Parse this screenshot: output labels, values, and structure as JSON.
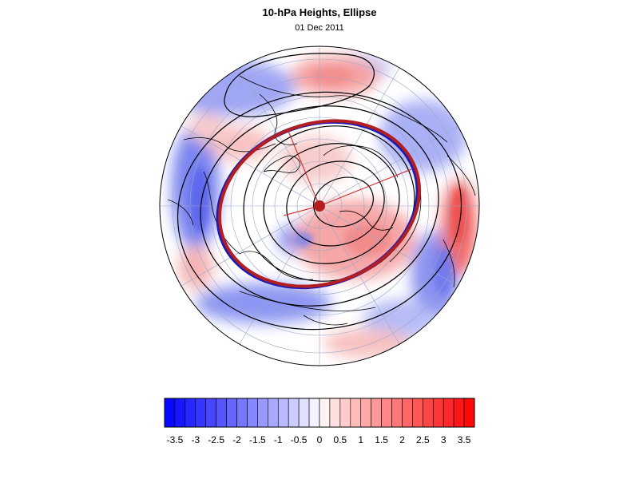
{
  "header": {
    "title": "10-hPa Heights, Ellipse",
    "date": "01 Dec 2011"
  },
  "map": {
    "projection": "north-polar-orthographic",
    "field_colors": {
      "negative": "#1a1aff",
      "positive": "#ff1a1a",
      "neutral": "#ffffff"
    },
    "ellipse_colors": {
      "blue": "#1c1cb4",
      "red": "#b41e1e"
    },
    "contour_color": "#000000",
    "coastline_color": "#000000",
    "graticule_color": "#9aa8c8"
  },
  "colorbar": {
    "labels": [
      "-3.5",
      "-3",
      "-2.5",
      "-2",
      "-1.5",
      "-1",
      "-0.5",
      "0",
      "0.5",
      "1",
      "1.5",
      "2",
      "2.5",
      "3",
      "3.5"
    ],
    "levels": [
      -3.5,
      -3.25,
      -3,
      -2.75,
      -2.5,
      -2.25,
      -2,
      -1.75,
      -1.5,
      -1.25,
      -1,
      -0.75,
      -0.5,
      -0.25,
      0,
      0.25,
      0.5,
      0.75,
      1,
      1.25,
      1.5,
      1.75,
      2,
      2.25,
      2.5,
      2.75,
      3,
      3.25,
      3.5
    ]
  }
}
